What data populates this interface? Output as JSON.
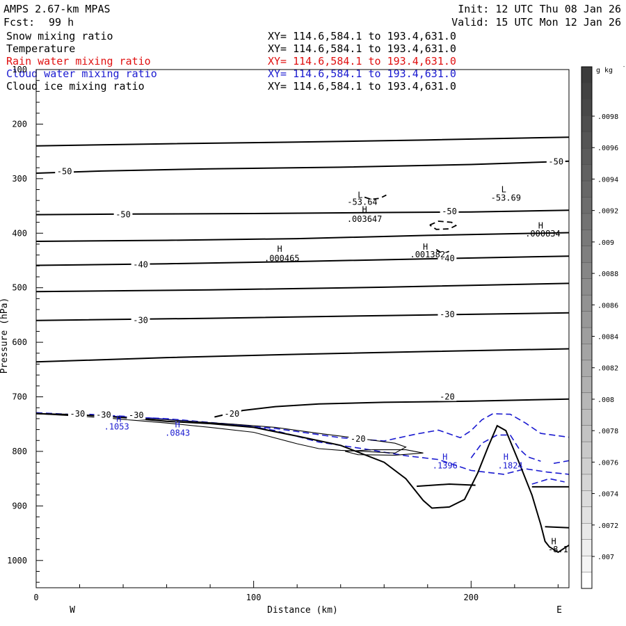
{
  "header": {
    "model": "AMPS 2.67-km MPAS",
    "fcst_label": "Fcst:",
    "fcst_value": "99 h",
    "init": "Init: 12 UTC Thu 08 Jan 26",
    "valid": "Valid: 15 UTC Mon 12 Jan 26",
    "fields": [
      {
        "name": "Snow mixing ratio",
        "xy": "XY= 114.6,584.1 to 193.4,631.0",
        "color": "#000000"
      },
      {
        "name": "Temperature",
        "xy": "XY= 114.6,584.1 to 193.4,631.0",
        "color": "#000000"
      },
      {
        "name": "Rain water mixing ratio",
        "xy": "XY= 114.6,584.1 to 193.4,631.0",
        "color": "#e01010"
      },
      {
        "name": "Cloud water mixing ratio",
        "xy": "XY= 114.6,584.1 to 193.4,631.0",
        "color": "#1a1ad0"
      },
      {
        "name": "Cloud ice mixing ratio",
        "xy": "XY= 114.6,584.1 to 193.4,631.0",
        "color": "#000000"
      }
    ]
  },
  "chart_data": {
    "type": "contour-cross-section",
    "xlabel": "Distance (km)",
    "ylabel": "Pressure (hPa)",
    "xlim": [
      0,
      245
    ],
    "ylim": [
      1050,
      100
    ],
    "x_ticks": [
      0,
      100,
      200
    ],
    "y_ticks": [
      100,
      200,
      300,
      400,
      500,
      600,
      700,
      800,
      900,
      1000
    ],
    "x_end_labels": {
      "left": "W",
      "right": "E"
    },
    "colorbar": {
      "unit": "g kg",
      "unit_exp": "-1",
      "labels": [
        ".0098",
        ".0096",
        ".0094",
        ".0092",
        ".009",
        ".0088",
        ".0086",
        ".0084",
        ".0082",
        ".008",
        ".0078",
        ".0076",
        ".0074",
        ".0072",
        ".007"
      ]
    },
    "temperature_lines": [
      {
        "points": [
          [
            0,
            240
          ],
          [
            60,
            236
          ],
          [
            120,
            233
          ],
          [
            180,
            229
          ],
          [
            245,
            224
          ]
        ]
      },
      {
        "points": [
          [
            0,
            290
          ],
          [
            30,
            286
          ],
          [
            80,
            282
          ],
          [
            140,
            279
          ],
          [
            200,
            274
          ],
          [
            245,
            268
          ]
        ]
      },
      {
        "points": [
          [
            0,
            366
          ],
          [
            40,
            365
          ],
          [
            100,
            364
          ],
          [
            160,
            362
          ],
          [
            200,
            361
          ],
          [
            245,
            358
          ]
        ]
      },
      {
        "points": [
          [
            0,
            415
          ],
          [
            60,
            413
          ],
          [
            120,
            410
          ],
          [
            180,
            404
          ],
          [
            245,
            399
          ]
        ]
      },
      {
        "points": [
          [
            0,
            459
          ],
          [
            60,
            456
          ],
          [
            120,
            452
          ],
          [
            180,
            447
          ],
          [
            245,
            442
          ]
        ]
      },
      {
        "points": [
          [
            0,
            507
          ],
          [
            80,
            504
          ],
          [
            160,
            499
          ],
          [
            245,
            492
          ]
        ]
      },
      {
        "points": [
          [
            0,
            560
          ],
          [
            80,
            556
          ],
          [
            160,
            551
          ],
          [
            245,
            546
          ]
        ]
      },
      {
        "points": [
          [
            0,
            636
          ],
          [
            60,
            628
          ],
          [
            120,
            622
          ],
          [
            180,
            617
          ],
          [
            245,
            612
          ]
        ]
      },
      {
        "points": [
          [
            82,
            737
          ],
          [
            95,
            725
          ],
          [
            110,
            718
          ],
          [
            130,
            713
          ],
          [
            160,
            710
          ],
          [
            200,
            708
          ],
          [
            245,
            704
          ]
        ]
      }
    ],
    "temperature_labels": [
      {
        "x": 13,
        "p": 287,
        "text": "-50"
      },
      {
        "x": 239,
        "p": 269,
        "text": "-50"
      },
      {
        "x": 40,
        "p": 366,
        "text": "-50"
      },
      {
        "x": 190,
        "p": 360,
        "text": "-50"
      },
      {
        "x": 48,
        "p": 458,
        "text": "-40"
      },
      {
        "x": 189,
        "p": 446,
        "text": "-40"
      },
      {
        "x": 48,
        "p": 560,
        "text": "-30"
      },
      {
        "x": 189,
        "p": 549,
        "text": "-30"
      },
      {
        "x": 90,
        "p": 731,
        "text": "-20"
      },
      {
        "x": 189,
        "p": 700,
        "text": "-20"
      },
      {
        "x": 148,
        "p": 777,
        "text": "-20"
      },
      {
        "x": 19,
        "p": 731,
        "text": "-30"
      },
      {
        "x": 31,
        "p": 733,
        "text": "-30"
      },
      {
        "x": 46,
        "p": 734,
        "text": "-30"
      }
    ],
    "terrain": [
      [
        0,
        731
      ],
      [
        20,
        733
      ],
      [
        40,
        738
      ],
      [
        60,
        745
      ],
      [
        80,
        749
      ],
      [
        100,
        756
      ],
      [
        120,
        772
      ],
      [
        140,
        789
      ],
      [
        160,
        820
      ],
      [
        170,
        850
      ],
      [
        178,
        890
      ],
      [
        182,
        904
      ],
      [
        190,
        902
      ],
      [
        197,
        888
      ],
      [
        203,
        840
      ],
      [
        208,
        790
      ],
      [
        212,
        753
      ],
      [
        216,
        762
      ],
      [
        222,
        820
      ],
      [
        228,
        880
      ],
      [
        232,
        934
      ],
      [
        234,
        965
      ],
      [
        236,
        975
      ],
      [
        240,
        985
      ],
      [
        245,
        972
      ]
    ],
    "cold_pool_lines": [
      {
        "points": [
          [
            175,
            864
          ],
          [
            190,
            860
          ],
          [
            202,
            862
          ]
        ]
      },
      {
        "points": [
          [
            228,
            865
          ],
          [
            245,
            865
          ]
        ]
      },
      {
        "points": [
          [
            234,
            938
          ],
          [
            245,
            940
          ]
        ]
      }
    ],
    "snow_contour": [
      [
        0,
        730
      ],
      [
        30,
        735
      ],
      [
        60,
        742
      ],
      [
        90,
        750
      ],
      [
        110,
        756
      ],
      [
        130,
        767
      ],
      [
        150,
        777
      ],
      [
        165,
        785
      ],
      [
        170,
        792
      ],
      [
        165,
        803
      ],
      [
        150,
        800
      ],
      [
        140,
        798
      ],
      [
        130,
        795
      ],
      [
        120,
        786
      ],
      [
        100,
        765
      ],
      [
        80,
        756
      ],
      [
        60,
        748
      ],
      [
        30,
        738
      ],
      [
        0,
        731
      ]
    ],
    "snow_contour2": [
      [
        142,
        800
      ],
      [
        155,
        797
      ],
      [
        170,
        797
      ],
      [
        178,
        803
      ],
      [
        165,
        807
      ],
      [
        148,
        806
      ],
      [
        142,
        800
      ]
    ],
    "ice_contours": [
      {
        "points": [
          [
            151,
            334
          ],
          [
            154,
            338
          ],
          [
            158,
            336
          ],
          [
            161,
            330
          ]
        ],
        "closed": false
      },
      {
        "points": [
          [
            181,
            385
          ],
          [
            185,
            378
          ],
          [
            191,
            380
          ],
          [
            193,
            386
          ],
          [
            190,
            392
          ],
          [
            184,
            393
          ],
          [
            181,
            385
          ]
        ],
        "closed": true
      },
      {
        "points": [
          [
            184,
            430
          ],
          [
            187,
            438
          ],
          [
            190,
            433
          ]
        ],
        "closed": false
      }
    ],
    "cloud_water_lines": [
      {
        "points": [
          [
            0,
            729
          ],
          [
            30,
            735
          ],
          [
            60,
            740
          ],
          [
            80,
            747
          ],
          [
            95,
            752
          ],
          [
            110,
            762
          ],
          [
            130,
            783
          ],
          [
            150,
            795
          ],
          [
            170,
            808
          ],
          [
            185,
            815
          ],
          [
            200,
            835
          ],
          [
            215,
            842
          ],
          [
            225,
            832
          ],
          [
            235,
            838
          ],
          [
            245,
            842
          ]
        ]
      },
      {
        "points": [
          [
            20,
            731
          ],
          [
            50,
            738
          ],
          [
            80,
            748
          ],
          [
            110,
            758
          ],
          [
            140,
            775
          ],
          [
            160,
            781
          ],
          [
            175,
            768
          ],
          [
            185,
            761
          ],
          [
            195,
            775
          ],
          [
            200,
            762
          ],
          [
            205,
            742
          ],
          [
            210,
            731
          ],
          [
            218,
            732
          ],
          [
            225,
            748
          ],
          [
            232,
            767
          ],
          [
            245,
            774
          ]
        ]
      },
      {
        "points": [
          [
            200,
            812
          ],
          [
            205,
            785
          ],
          [
            212,
            770
          ],
          [
            218,
            770
          ],
          [
            222,
            795
          ],
          [
            226,
            810
          ],
          [
            232,
            818
          ]
        ]
      },
      {
        "points": [
          [
            238,
            822
          ],
          [
            245,
            817
          ]
        ]
      },
      {
        "points": [
          [
            228,
            860
          ],
          [
            236,
            850
          ],
          [
            243,
            856
          ]
        ]
      }
    ],
    "annotations": [
      {
        "x": 149,
        "p": 330,
        "text": "L",
        "color": "#000000"
      },
      {
        "x": 150,
        "p": 343,
        "text": "-53.64",
        "color": "#000000"
      },
      {
        "x": 151,
        "p": 357,
        "text": "H",
        "color": "#000000"
      },
      {
        "x": 151,
        "p": 374,
        "text": ".003647",
        "color": "#000000"
      },
      {
        "x": 215,
        "p": 320,
        "text": "L",
        "color": "#000000"
      },
      {
        "x": 216,
        "p": 335,
        "text": "-53.69",
        "color": "#000000"
      },
      {
        "x": 232,
        "p": 386,
        "text": "H",
        "color": "#000000"
      },
      {
        "x": 233,
        "p": 401,
        "text": ".000834",
        "color": "#000000"
      },
      {
        "x": 112,
        "p": 429,
        "text": "H",
        "color": "#000000"
      },
      {
        "x": 113,
        "p": 446,
        "text": ".000465",
        "color": "#000000"
      },
      {
        "x": 179,
        "p": 425,
        "text": "H",
        "color": "#000000"
      },
      {
        "x": 180,
        "p": 439,
        "text": ".001382",
        "color": "#000000"
      },
      {
        "x": 38,
        "p": 741,
        "text": "H",
        "color": "#1a1ad0"
      },
      {
        "x": 37,
        "p": 755,
        "text": ".1053",
        "color": "#1a1ad0"
      },
      {
        "x": 65,
        "p": 751,
        "text": "H",
        "color": "#1a1ad0"
      },
      {
        "x": 65,
        "p": 766,
        "text": ".0843",
        "color": "#1a1ad0"
      },
      {
        "x": 188,
        "p": 810,
        "text": "H",
        "color": "#1a1ad0"
      },
      {
        "x": 188,
        "p": 826,
        "text": ".1396",
        "color": "#1a1ad0"
      },
      {
        "x": 216,
        "p": 810,
        "text": "H",
        "color": "#1a1ad0"
      },
      {
        "x": 218,
        "p": 826,
        "text": ".1824",
        "color": "#1a1ad0"
      },
      {
        "x": 238,
        "p": 965,
        "text": "H",
        "color": "#000000"
      },
      {
        "x": 240,
        "p": 980,
        "text": "-8.1",
        "color": "#000000"
      }
    ]
  }
}
